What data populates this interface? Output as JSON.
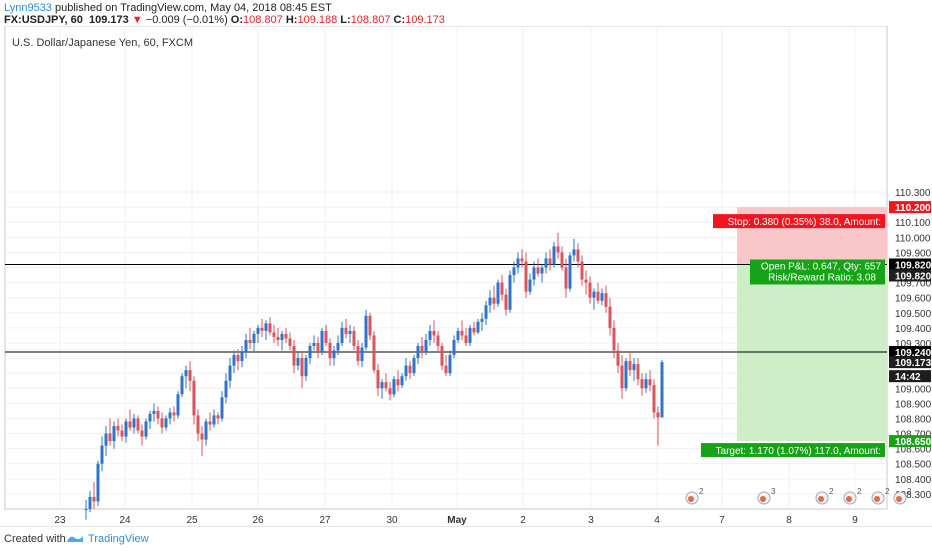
{
  "header": {
    "author": "Lynn9533",
    "published": "published on TradingView.com, May 04, 2018 08:45 EST",
    "symbol": "FX:USDJPY, 60",
    "last": "109.173",
    "change": "−0.009 (−0.01%)",
    "o_label": "O:",
    "o_value": "108.807",
    "h_label": "H:",
    "h_value": "109.188",
    "l_label": "L:",
    "l_value": "108.807",
    "c_label": "C:",
    "c_value": "109.173"
  },
  "colors": {
    "up": "#2f74c9",
    "down": "#d9545c",
    "stop_zone": "#f9c7c8",
    "target_zone": "#cdeec6",
    "stop_label": "#f0151f",
    "target_label": "#17a317",
    "author": "#2f8fd8"
  },
  "chart_data": {
    "type": "candlestick",
    "title": "U.S. Dollar/Japanese Yen, 60, FXCM",
    "ylim": [
      108.2,
      111.4
    ],
    "yticks": [
      108.3,
      108.4,
      108.5,
      108.6,
      108.7,
      108.8,
      108.9,
      109.0,
      109.1,
      109.2,
      109.3,
      109.4,
      109.5,
      109.6,
      109.7,
      109.8,
      109.9,
      110.0,
      110.1,
      110.2,
      110.3
    ],
    "ytick_labels": [
      "108.300",
      "108.400",
      "108.500",
      "108.600",
      "108.700",
      "108.800",
      "108.900",
      "109.000",
      "109.100",
      "109.200",
      "109.300",
      "109.400",
      "109.500",
      "109.600",
      "109.700",
      "109.800",
      "109.900",
      "110.000",
      "110.100",
      "110.200",
      "110.300"
    ],
    "x_ticks": [
      "23",
      "24",
      "25",
      "26",
      "27",
      "30",
      "May",
      "2",
      "3",
      "4",
      "7",
      "8",
      "9"
    ],
    "horizontal_lines": [
      109.82,
      109.24
    ],
    "price_labels": [
      {
        "text": "110.200",
        "value": 110.2,
        "kind": "stop"
      },
      {
        "text": "109.820",
        "value": 109.82,
        "kind": "line"
      },
      {
        "text": "109.820",
        "value": 109.82,
        "kind": "dark"
      },
      {
        "text": "109.240",
        "value": 109.24,
        "kind": "line"
      },
      {
        "text": "109.173",
        "value": 109.173,
        "kind": "dark"
      },
      {
        "text": "14:42",
        "value": 109.08,
        "kind": "dark"
      },
      {
        "text": "108.650",
        "value": 108.65,
        "kind": "target"
      }
    ],
    "position": {
      "entry": 109.82,
      "stop": 110.2,
      "target": 108.65,
      "stop_text": "Stop: 0.380 (0.35%) 38.0, Amount:",
      "open_pnl_text": "Open P&L: 0.647, Qty: 657",
      "rr_text": "Risk/Reward Ratio: 3.08",
      "target_text": "Target: 1.170 (1.07%) 117.0, Amount:"
    },
    "event_badges": [
      "2",
      "3",
      "2",
      "2",
      "2",
      "2"
    ],
    "candles": [
      [
        108.2,
        108.26,
        108.13,
        108.2
      ],
      [
        108.2,
        108.32,
        108.18,
        108.28
      ],
      [
        108.28,
        108.38,
        108.2,
        108.25
      ],
      [
        108.25,
        108.52,
        108.22,
        108.5
      ],
      [
        108.5,
        108.68,
        108.45,
        108.62
      ],
      [
        108.62,
        108.75,
        108.55,
        108.7
      ],
      [
        108.7,
        108.8,
        108.62,
        108.65
      ],
      [
        108.65,
        108.78,
        108.6,
        108.75
      ],
      [
        108.75,
        108.8,
        108.68,
        108.72
      ],
      [
        108.72,
        108.76,
        108.65,
        108.68
      ],
      [
        108.68,
        108.8,
        108.64,
        108.78
      ],
      [
        108.78,
        108.86,
        108.72,
        108.74
      ],
      [
        108.74,
        108.83,
        108.7,
        108.8
      ],
      [
        108.8,
        108.82,
        108.7,
        108.72
      ],
      [
        108.72,
        108.76,
        108.62,
        108.68
      ],
      [
        108.68,
        108.8,
        108.66,
        108.78
      ],
      [
        108.78,
        108.85,
        108.73,
        108.83
      ],
      [
        108.83,
        108.9,
        108.78,
        108.85
      ],
      [
        108.85,
        108.88,
        108.76,
        108.8
      ],
      [
        108.8,
        108.84,
        108.7,
        108.74
      ],
      [
        108.74,
        108.82,
        108.72,
        108.8
      ],
      [
        108.8,
        108.87,
        108.76,
        108.84
      ],
      [
        108.84,
        108.88,
        108.78,
        108.82
      ],
      [
        108.82,
        108.98,
        108.8,
        108.96
      ],
      [
        108.96,
        109.1,
        108.94,
        109.08
      ],
      [
        109.08,
        109.15,
        109.0,
        109.12
      ],
      [
        109.12,
        109.18,
        108.98,
        109.05
      ],
      [
        109.05,
        109.08,
        108.76,
        108.82
      ],
      [
        108.82,
        108.86,
        108.65,
        108.7
      ],
      [
        108.7,
        108.75,
        108.55,
        108.66
      ],
      [
        108.66,
        108.8,
        108.62,
        108.78
      ],
      [
        108.78,
        108.84,
        108.72,
        108.76
      ],
      [
        108.76,
        108.86,
        108.74,
        108.82
      ],
      [
        108.82,
        108.84,
        108.76,
        108.8
      ],
      [
        108.8,
        108.98,
        108.78,
        108.94
      ],
      [
        108.94,
        109.1,
        108.9,
        109.05
      ],
      [
        109.05,
        109.2,
        109.0,
        109.15
      ],
      [
        109.15,
        109.25,
        109.1,
        109.22
      ],
      [
        109.22,
        109.26,
        109.12,
        109.18
      ],
      [
        109.18,
        109.28,
        109.14,
        109.24
      ],
      [
        109.24,
        109.36,
        109.2,
        109.32
      ],
      [
        109.32,
        109.4,
        109.26,
        109.3
      ],
      [
        109.3,
        109.38,
        109.24,
        109.36
      ],
      [
        109.36,
        109.42,
        109.3,
        109.4
      ],
      [
        109.4,
        109.46,
        109.34,
        109.38
      ],
      [
        109.38,
        109.45,
        109.32,
        109.43
      ],
      [
        109.43,
        109.47,
        109.35,
        109.37
      ],
      [
        109.37,
        109.42,
        109.3,
        109.34
      ],
      [
        109.34,
        109.4,
        109.28,
        109.32
      ],
      [
        109.32,
        109.38,
        109.25,
        109.36
      ],
      [
        109.36,
        109.4,
        109.3,
        109.33
      ],
      [
        109.33,
        109.37,
        109.25,
        109.28
      ],
      [
        109.28,
        109.32,
        109.1,
        109.15
      ],
      [
        109.15,
        109.24,
        109.12,
        109.2
      ],
      [
        109.2,
        109.24,
        109.0,
        109.08
      ],
      [
        109.08,
        109.22,
        109.05,
        109.2
      ],
      [
        109.2,
        109.3,
        109.16,
        109.28
      ],
      [
        109.28,
        109.35,
        109.25,
        109.3
      ],
      [
        109.3,
        109.34,
        109.2,
        109.24
      ],
      [
        109.24,
        109.4,
        109.22,
        109.38
      ],
      [
        109.38,
        109.42,
        109.28,
        109.3
      ],
      [
        109.3,
        109.33,
        109.15,
        109.2
      ],
      [
        109.2,
        109.28,
        109.15,
        109.25
      ],
      [
        109.25,
        109.35,
        109.22,
        109.3
      ],
      [
        109.3,
        109.44,
        109.28,
        109.4
      ],
      [
        109.4,
        109.46,
        109.33,
        109.36
      ],
      [
        109.36,
        109.42,
        109.3,
        109.38
      ],
      [
        109.38,
        109.41,
        109.25,
        109.28
      ],
      [
        109.28,
        109.32,
        109.15,
        109.18
      ],
      [
        109.18,
        109.3,
        109.14,
        109.27
      ],
      [
        109.27,
        109.52,
        109.25,
        109.48
      ],
      [
        109.48,
        109.5,
        109.32,
        109.35
      ],
      [
        109.35,
        109.38,
        109.1,
        109.12
      ],
      [
        109.12,
        109.16,
        108.95,
        109.0
      ],
      [
        109.0,
        109.06,
        108.93,
        109.04
      ],
      [
        109.04,
        109.1,
        108.98,
        109.0
      ],
      [
        109.0,
        109.04,
        108.92,
        108.96
      ],
      [
        108.96,
        109.08,
        108.94,
        109.06
      ],
      [
        109.06,
        109.12,
        108.98,
        109.02
      ],
      [
        109.02,
        109.1,
        109.0,
        109.08
      ],
      [
        109.08,
        109.2,
        109.05,
        109.15
      ],
      [
        109.15,
        109.18,
        109.06,
        109.1
      ],
      [
        109.1,
        109.22,
        109.08,
        109.2
      ],
      [
        109.2,
        109.3,
        109.16,
        109.28
      ],
      [
        109.28,
        109.34,
        109.2,
        109.24
      ],
      [
        109.24,
        109.36,
        109.22,
        109.32
      ],
      [
        109.32,
        109.42,
        109.28,
        109.38
      ],
      [
        109.38,
        109.45,
        109.3,
        109.35
      ],
      [
        109.35,
        109.38,
        109.24,
        109.28
      ],
      [
        109.28,
        109.3,
        109.12,
        109.15
      ],
      [
        109.15,
        109.22,
        109.08,
        109.1
      ],
      [
        109.1,
        109.25,
        109.08,
        109.22
      ],
      [
        109.22,
        109.35,
        109.2,
        109.32
      ],
      [
        109.32,
        109.4,
        109.3,
        109.38
      ],
      [
        109.38,
        109.45,
        109.32,
        109.35
      ],
      [
        109.35,
        109.4,
        109.28,
        109.3
      ],
      [
        109.3,
        109.42,
        109.28,
        109.4
      ],
      [
        109.4,
        109.44,
        109.35,
        109.37
      ],
      [
        109.37,
        109.46,
        109.36,
        109.44
      ],
      [
        109.44,
        109.5,
        109.38,
        109.46
      ],
      [
        109.46,
        109.58,
        109.42,
        109.55
      ],
      [
        109.55,
        109.65,
        109.5,
        109.6
      ],
      [
        109.6,
        109.68,
        109.52,
        109.56
      ],
      [
        109.56,
        109.72,
        109.54,
        109.7
      ],
      [
        109.7,
        109.75,
        109.58,
        109.62
      ],
      [
        109.62,
        109.66,
        109.48,
        109.52
      ],
      [
        109.52,
        109.78,
        109.5,
        109.75
      ],
      [
        109.75,
        109.84,
        109.7,
        109.8
      ],
      [
        109.8,
        109.9,
        109.76,
        109.86
      ],
      [
        109.86,
        109.92,
        109.8,
        109.84
      ],
      [
        109.84,
        109.9,
        109.6,
        109.64
      ],
      [
        109.64,
        109.76,
        109.62,
        109.72
      ],
      [
        109.72,
        109.84,
        109.68,
        109.8
      ],
      [
        109.8,
        109.86,
        109.74,
        109.76
      ],
      [
        109.76,
        109.82,
        109.7,
        109.8
      ],
      [
        109.8,
        109.9,
        109.76,
        109.86
      ],
      [
        109.86,
        109.92,
        109.78,
        109.82
      ],
      [
        109.82,
        109.97,
        109.8,
        109.94
      ],
      [
        109.94,
        110.03,
        109.86,
        109.9
      ],
      [
        109.9,
        109.94,
        109.78,
        109.8
      ],
      [
        109.8,
        109.86,
        109.6,
        109.66
      ],
      [
        109.66,
        109.9,
        109.64,
        109.88
      ],
      [
        109.88,
        109.99,
        109.84,
        109.92
      ],
      [
        109.92,
        109.96,
        109.8,
        109.84
      ],
      [
        109.84,
        109.88,
        109.68,
        109.72
      ],
      [
        109.72,
        109.78,
        109.62,
        109.7
      ],
      [
        109.7,
        109.74,
        109.56,
        109.6
      ],
      [
        109.6,
        109.66,
        109.52,
        109.64
      ],
      [
        109.64,
        109.7,
        109.56,
        109.58
      ],
      [
        109.58,
        109.66,
        109.55,
        109.63
      ],
      [
        109.63,
        109.68,
        109.5,
        109.54
      ],
      [
        109.54,
        109.6,
        109.35,
        109.4
      ],
      [
        109.4,
        109.45,
        109.2,
        109.25
      ],
      [
        109.25,
        109.3,
        109.1,
        109.15
      ],
      [
        109.15,
        109.22,
        108.93,
        109.0
      ],
      [
        109.0,
        109.2,
        108.98,
        109.18
      ],
      [
        109.18,
        109.24,
        109.08,
        109.12
      ],
      [
        109.12,
        109.2,
        109.05,
        109.16
      ],
      [
        109.16,
        109.2,
        109.02,
        109.06
      ],
      [
        109.06,
        109.1,
        108.95,
        109.0
      ],
      [
        109.0,
        109.1,
        108.97,
        109.06
      ],
      [
        109.06,
        109.12,
        108.98,
        109.02
      ],
      [
        109.02,
        109.06,
        108.8,
        108.84
      ],
      [
        108.84,
        108.88,
        108.62,
        108.807
      ],
      [
        108.807,
        109.188,
        108.807,
        109.173
      ]
    ]
  },
  "footer": {
    "created": "Created with",
    "brand": "TradingView"
  }
}
